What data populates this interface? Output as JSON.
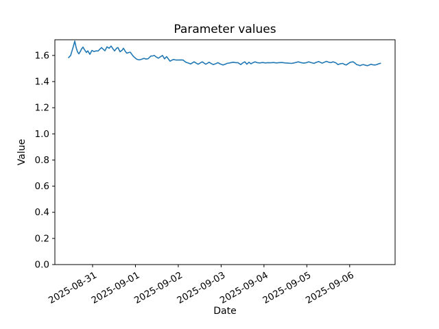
{
  "chart_data": {
    "type": "line",
    "title": "Parameter values",
    "xlabel": "Date",
    "ylabel": "Value",
    "grid": false,
    "legend": null,
    "line_color": "#1f77b4",
    "axis_color": "#000000",
    "background_color": "#ffffff",
    "x_tick_labels": [
      "2025-08-31",
      "2025-09-01",
      "2025-09-02",
      "2025-09-03",
      "2025-09-04",
      "2025-09-05",
      "2025-09-06"
    ],
    "x_tick_days": [
      0,
      1,
      2,
      3,
      4,
      5,
      6
    ],
    "x_tick_rotation_deg": 30,
    "y_ticks": [
      0.0,
      0.2,
      0.4,
      0.6,
      0.8,
      1.0,
      1.2,
      1.4,
      1.6
    ],
    "xlim_days": [
      -0.88,
      7.06
    ],
    "ylim": [
      0.0,
      1.72
    ],
    "series": [
      {
        "x_days": [
          -0.56,
          -0.512,
          -0.48,
          -0.448,
          -0.416,
          -0.384,
          -0.352,
          -0.32,
          -0.288,
          -0.256,
          -0.224,
          -0.192,
          -0.144,
          -0.112,
          -0.064,
          -0.016,
          0.032,
          0.08,
          0.128,
          0.176,
          0.208,
          0.256,
          0.288,
          0.336,
          0.384,
          0.432,
          0.48,
          0.512,
          0.56,
          0.592,
          0.64,
          0.688,
          0.72,
          0.768,
          0.8,
          0.848,
          0.88,
          0.928,
          0.96,
          1.008,
          1.04,
          1.088,
          1.136,
          1.2,
          1.248,
          1.296,
          1.36,
          1.408,
          1.44,
          1.488,
          1.536,
          1.584,
          1.632,
          1.68,
          1.728,
          1.776,
          1.808,
          1.856,
          1.888,
          1.952,
          2.0,
          2.064,
          2.112,
          2.176,
          2.24,
          2.288,
          2.336,
          2.368,
          2.416,
          2.464,
          2.512,
          2.56,
          2.608,
          2.64,
          2.688,
          2.72,
          2.768,
          2.816,
          2.88,
          2.928,
          2.976,
          3.04,
          3.088,
          3.136,
          3.2,
          3.28,
          3.344,
          3.392,
          3.456,
          3.504,
          3.552,
          3.6,
          3.648,
          3.696,
          3.744,
          3.792,
          3.84,
          3.904,
          3.968,
          4.032,
          4.096,
          4.16,
          4.224,
          4.288,
          4.352,
          4.416,
          4.496,
          4.56,
          4.64,
          4.704,
          4.752,
          4.8,
          4.864,
          4.928,
          4.992,
          5.04,
          5.104,
          5.168,
          5.216,
          5.28,
          5.328,
          5.36,
          5.408,
          5.456,
          5.504,
          5.552,
          5.616,
          5.68,
          5.728,
          5.776,
          5.84,
          5.872,
          5.92,
          5.968,
          6.016,
          6.08,
          6.128,
          6.16,
          6.208,
          6.24,
          6.288,
          6.32,
          6.368,
          6.416,
          6.464,
          6.496,
          6.544,
          6.592,
          6.64,
          6.672,
          6.72
        ],
        "values": [
          1.583,
          1.6,
          1.635,
          1.67,
          1.71,
          1.66,
          1.627,
          1.612,
          1.63,
          1.65,
          1.664,
          1.645,
          1.623,
          1.635,
          1.609,
          1.638,
          1.63,
          1.635,
          1.634,
          1.65,
          1.66,
          1.645,
          1.636,
          1.666,
          1.655,
          1.672,
          1.648,
          1.635,
          1.655,
          1.66,
          1.628,
          1.64,
          1.655,
          1.63,
          1.617,
          1.623,
          1.625,
          1.603,
          1.591,
          1.577,
          1.57,
          1.566,
          1.57,
          1.578,
          1.572,
          1.575,
          1.595,
          1.597,
          1.6,
          1.588,
          1.579,
          1.59,
          1.6,
          1.574,
          1.591,
          1.57,
          1.556,
          1.565,
          1.569,
          1.565,
          1.565,
          1.566,
          1.565,
          1.548,
          1.541,
          1.535,
          1.545,
          1.551,
          1.541,
          1.533,
          1.543,
          1.551,
          1.54,
          1.533,
          1.541,
          1.548,
          1.538,
          1.53,
          1.538,
          1.545,
          1.535,
          1.527,
          1.532,
          1.539,
          1.543,
          1.548,
          1.545,
          1.545,
          1.53,
          1.543,
          1.551,
          1.533,
          1.548,
          1.536,
          1.545,
          1.551,
          1.545,
          1.543,
          1.546,
          1.543,
          1.545,
          1.544,
          1.546,
          1.543,
          1.545,
          1.546,
          1.543,
          1.541,
          1.539,
          1.543,
          1.547,
          1.551,
          1.545,
          1.541,
          1.545,
          1.551,
          1.545,
          1.539,
          1.547,
          1.553,
          1.545,
          1.541,
          1.548,
          1.555,
          1.549,
          1.545,
          1.551,
          1.543,
          1.53,
          1.536,
          1.539,
          1.532,
          1.527,
          1.538,
          1.548,
          1.551,
          1.54,
          1.53,
          1.526,
          1.522,
          1.528,
          1.53,
          1.525,
          1.522,
          1.528,
          1.533,
          1.528,
          1.527,
          1.531,
          1.536,
          1.54
        ]
      }
    ]
  }
}
